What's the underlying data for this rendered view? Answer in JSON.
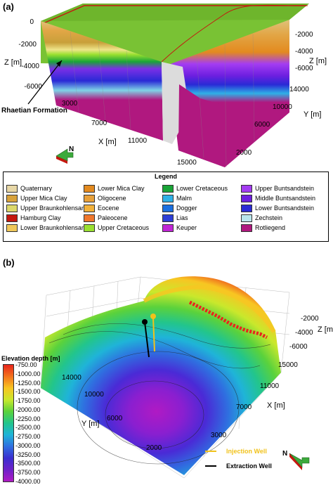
{
  "panel_a": {
    "label": "(a)",
    "z_axis_name": "Z [m]",
    "y_axis_name": "Y [m]",
    "x_axis_name": "X [m]",
    "z_ticks_left": [
      "0",
      "-2000",
      "-4000",
      "-6000"
    ],
    "z_ticks_right": [
      "-2000",
      "-4000",
      "-6000"
    ],
    "y_ticks": [
      "14000",
      "10000",
      "6000",
      "2000"
    ],
    "x_ticks": [
      "3000",
      "7000",
      "11000",
      "15000"
    ],
    "annotation": "Rhaetian Formation",
    "north_label": "N"
  },
  "legend": {
    "title": "Legend",
    "items": [
      {
        "label": "Quaternary",
        "color": "#e7d7a6"
      },
      {
        "label": "Lower Mica Clay",
        "color": "#e38a1f"
      },
      {
        "label": "Lower Cretaceous",
        "color": "#19a437"
      },
      {
        "label": "Upper Buntsandstein",
        "color": "#a33cf2"
      },
      {
        "label": "Upper Mica Clay",
        "color": "#d8a23b"
      },
      {
        "label": "Oligocene",
        "color": "#e7a03a"
      },
      {
        "label": "Malm",
        "color": "#2fb0e6"
      },
      {
        "label": "Middle Buntsandstein",
        "color": "#6d1fe0"
      },
      {
        "label": "Upper Braunkohlensande",
        "color": "#dcd86a"
      },
      {
        "label": "Eocene",
        "color": "#f2b13a"
      },
      {
        "label": "Dogger",
        "color": "#1b6fe0"
      },
      {
        "label": "Lower Buntsandstein",
        "color": "#2a2ad6"
      },
      {
        "label": "Hamburg Clay",
        "color": "#c4180f"
      },
      {
        "label": "Paleocene",
        "color": "#f0772c"
      },
      {
        "label": "Lias",
        "color": "#2d3fd7"
      },
      {
        "label": "Zechstein",
        "color": "#b9e6ec"
      },
      {
        "label": "Lower Braunkohlensande",
        "color": "#f0c85a"
      },
      {
        "label": "Upper Cretaceous",
        "color": "#9ae030"
      },
      {
        "label": "Keuper",
        "color": "#c025d6"
      },
      {
        "label": "Rotliegend",
        "color": "#b0187f"
      }
    ]
  },
  "panel_b": {
    "label": "(b)",
    "z_axis_name": "Z [m]",
    "y_axis_name": "Y [m]",
    "x_axis_name": "X [m]",
    "z_ticks": [
      "-2000",
      "-4000",
      "-6000"
    ],
    "y_ticks": [
      "14000",
      "10000",
      "6000",
      "2000"
    ],
    "x_ticks": [
      "15000",
      "11000",
      "7000",
      "3000"
    ],
    "colorbar_title": "Elevation depth [m]",
    "colorbar_labels": [
      "-750.00",
      "-1000.00",
      "-1250.00",
      "-1500.00",
      "-1750.00",
      "-2000.00",
      "-2250.00",
      "-2500.00",
      "-2750.00",
      "-3000.00",
      "-3250.00",
      "-3500.00",
      "-3750.00",
      "-4000.00"
    ],
    "injection_well_label": "Injection Well",
    "extraction_well_label": "Extraction Well",
    "injection_color": "#f1c21b",
    "extraction_color": "#000000",
    "north_label": "N"
  }
}
